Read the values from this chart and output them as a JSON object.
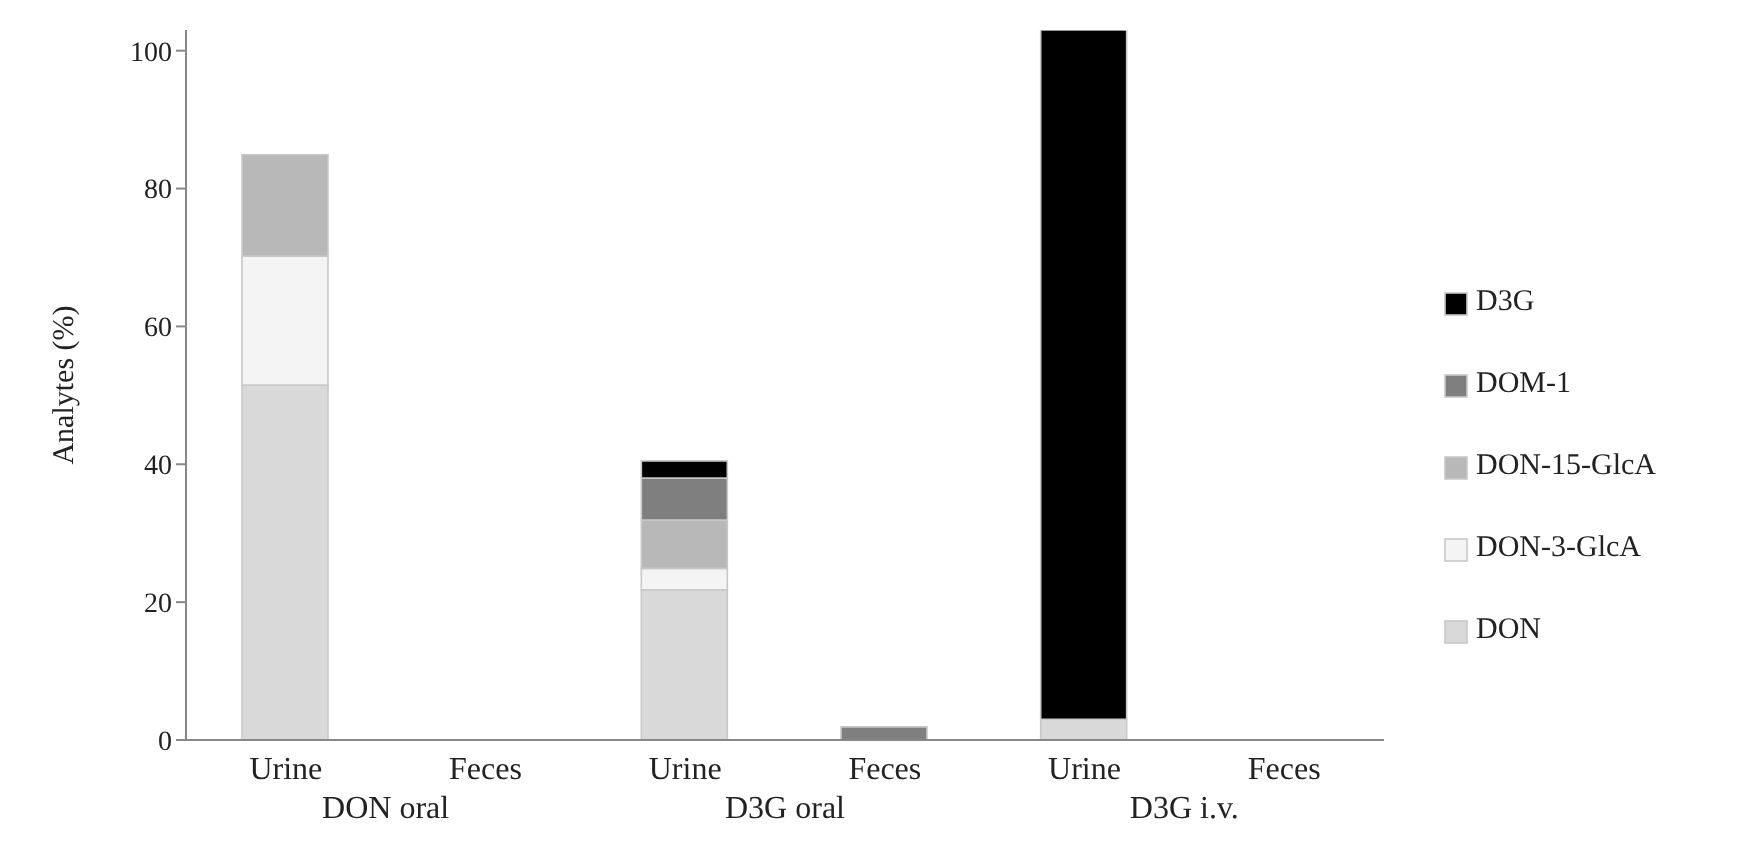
{
  "chart_data": {
    "type": "bar",
    "stacked": true,
    "ylabel": "Analytes (%)",
    "categories": [
      "Urine",
      "Feces",
      "Urine",
      "Feces",
      "Urine",
      "Feces"
    ],
    "series": [
      {
        "name": "DON",
        "color": "#d9d9d9",
        "values": [
          51.5,
          null,
          21.8,
          null,
          3,
          null
        ]
      },
      {
        "name": "DON-3-GlcA",
        "color": "#f4f4f4",
        "values": [
          18.7,
          null,
          3.1,
          null,
          null,
          null
        ]
      },
      {
        "name": "DON-15-GlcA",
        "color": "#b8b8b8",
        "values": [
          14.7,
          null,
          7,
          null,
          null,
          null
        ]
      },
      {
        "name": "DOM-1",
        "color": "#7f7f7f",
        "values": [
          null,
          null,
          6.1,
          1.9,
          null,
          null
        ]
      },
      {
        "name": "D3G",
        "color": "#000000",
        "values": [
          null,
          null,
          2.5,
          null,
          100,
          null
        ]
      }
    ],
    "annotations": [
      "DON oral",
      "D3G oral",
      "D3G i.v."
    ],
    "ylim": [
      0,
      103
    ],
    "yticks": [
      0,
      20,
      40,
      60,
      80,
      100
    ],
    "grid": false,
    "legend": "right"
  }
}
